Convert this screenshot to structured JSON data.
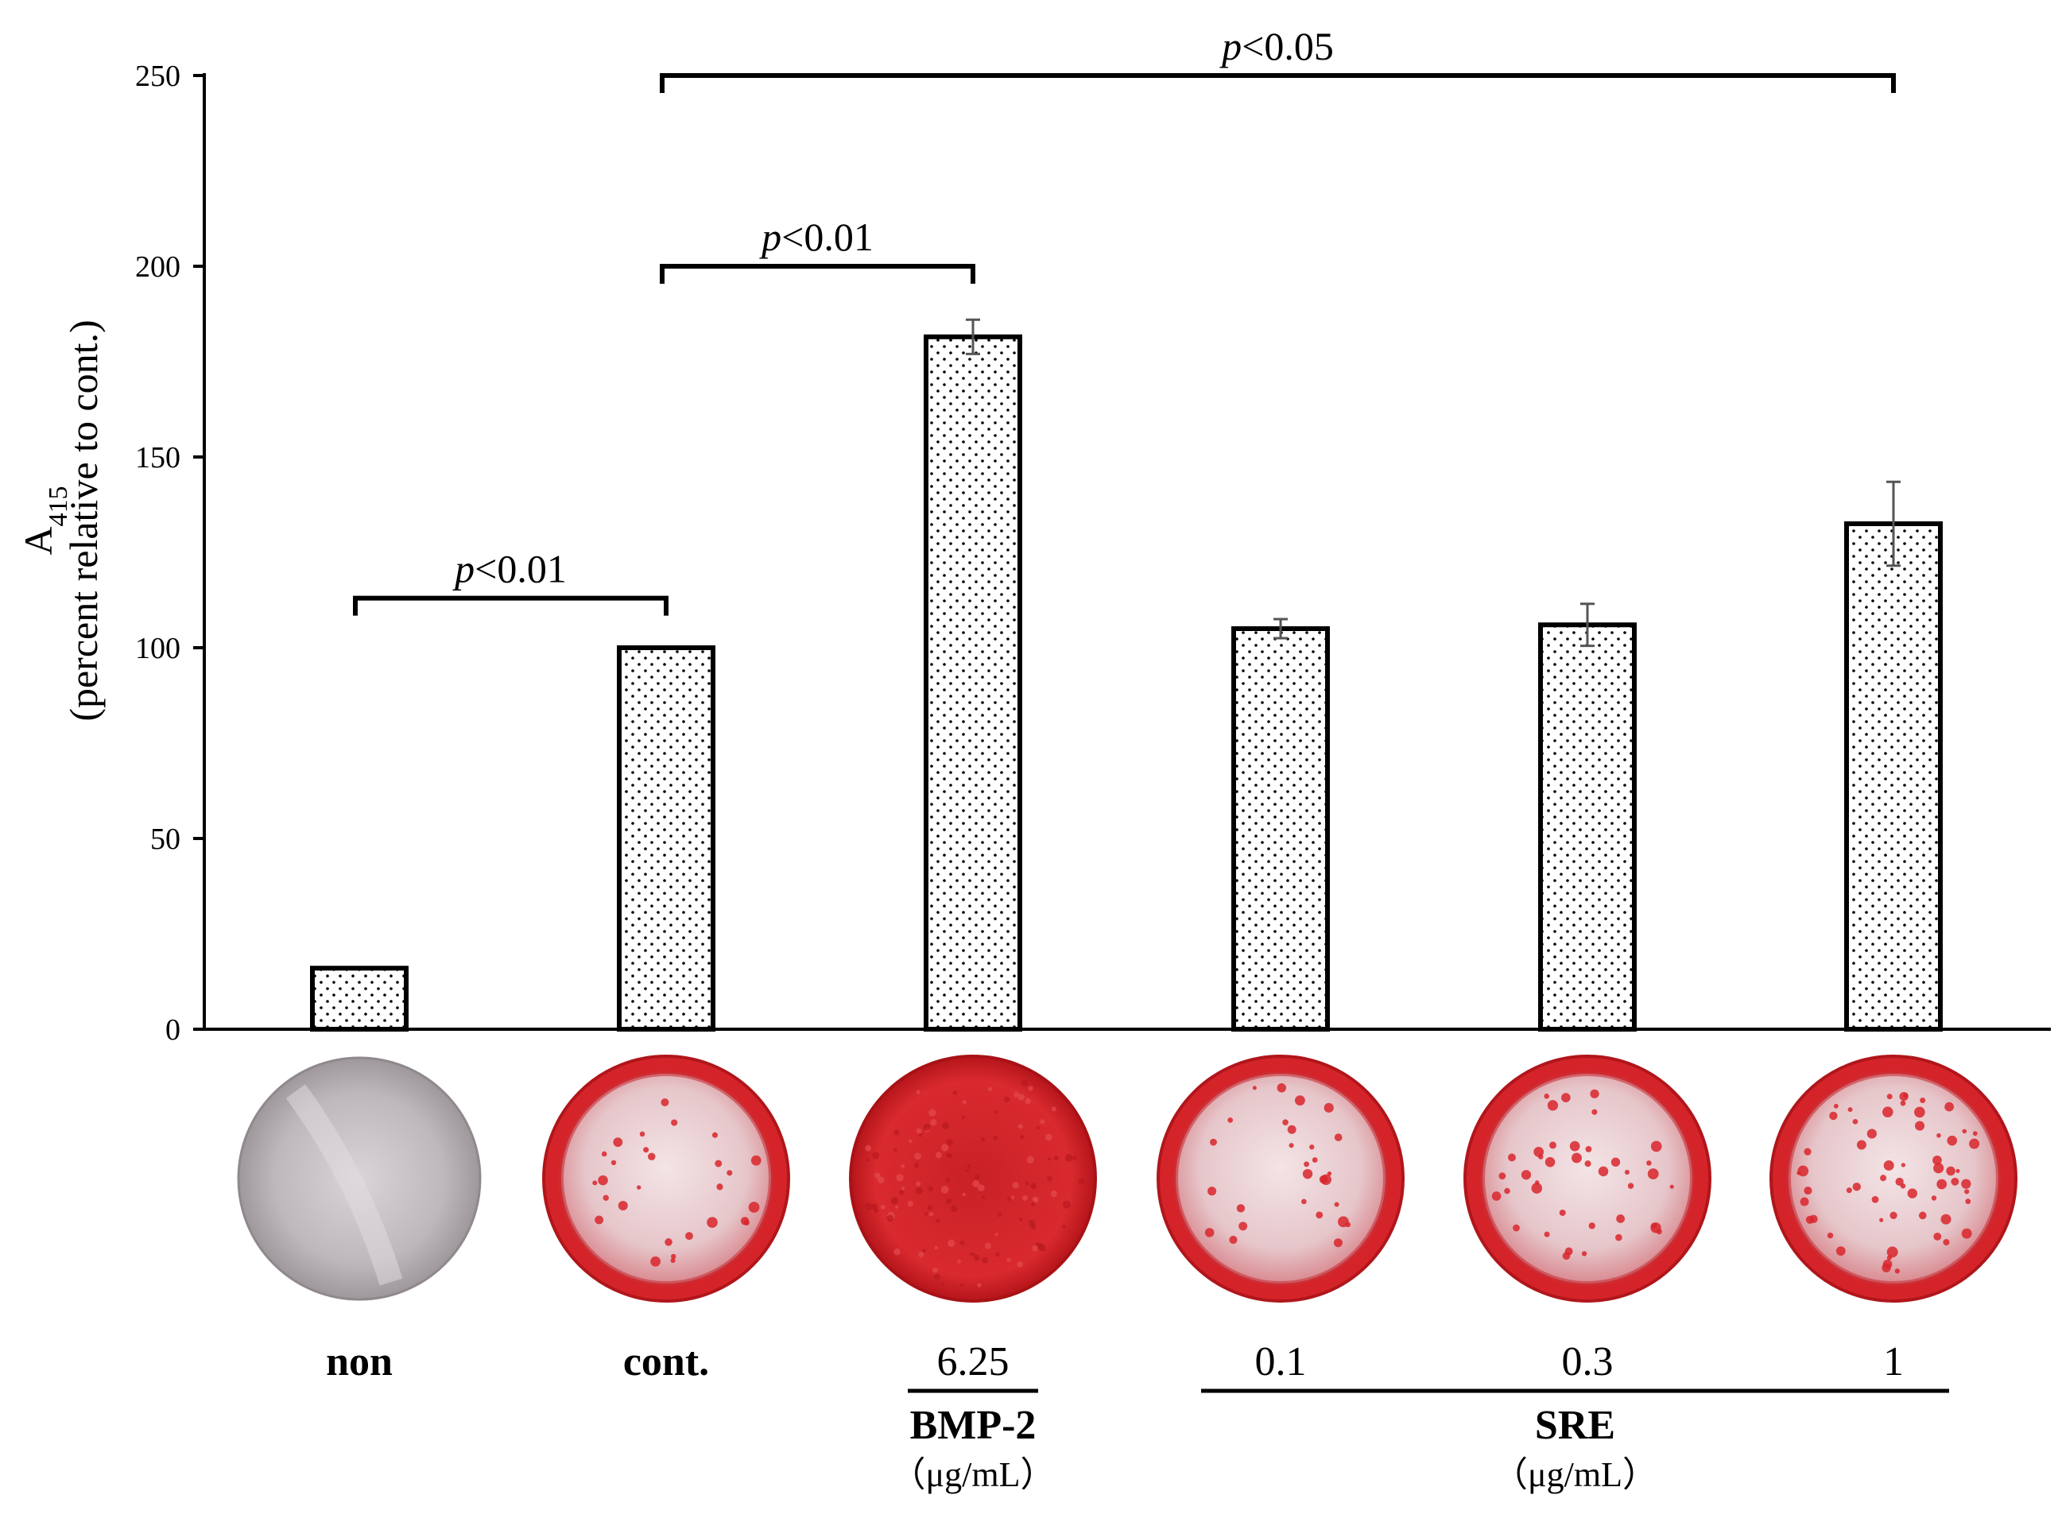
{
  "chart_data": {
    "type": "bar",
    "title": "",
    "ylabel_main": "A",
    "ylabel_sub": "415",
    "ylabel_line2": "(percent relative to cont.)",
    "ylim": [
      0,
      250
    ],
    "yticks": [
      0,
      50,
      100,
      150,
      200,
      250
    ],
    "categories": [
      "non",
      "cont.",
      "6.25",
      "0.1",
      "0.3",
      "1"
    ],
    "values": [
      16,
      100,
      181.5,
      105,
      106,
      132.5
    ],
    "errors": [
      0.5,
      0.5,
      4.5,
      2.5,
      5.5,
      11
    ],
    "bold_categories": [
      true,
      true,
      false,
      false,
      false,
      false
    ],
    "groups": [
      {
        "label": "BMP-2",
        "unit": "（μg/mL）",
        "from": 2,
        "to": 2
      },
      {
        "label": "SRE",
        "unit": "（μg/mL）",
        "from": 3,
        "to": 5
      }
    ],
    "significance": [
      {
        "from": 0,
        "to": 1,
        "y": 113,
        "p": "p",
        "text": "<0.01"
      },
      {
        "from": 1,
        "to": 2,
        "y": 200,
        "p": "p",
        "text": "<0.01"
      },
      {
        "from": 1,
        "to": 5,
        "y": 250,
        "p": "p",
        "text": "<0.05"
      }
    ],
    "wells": [
      {
        "category": "non",
        "stain": "none"
      },
      {
        "category": "cont.",
        "stain": "low"
      },
      {
        "category": "6.25",
        "stain": "full"
      },
      {
        "category": "0.1",
        "stain": "low"
      },
      {
        "category": "0.3",
        "stain": "medium"
      },
      {
        "category": "1",
        "stain": "high"
      }
    ],
    "colors": {
      "bar_fill": "#ffffff",
      "bar_dots": "#000000",
      "well_red": "#d9262a",
      "well_gray": "#b9b4b8"
    }
  }
}
